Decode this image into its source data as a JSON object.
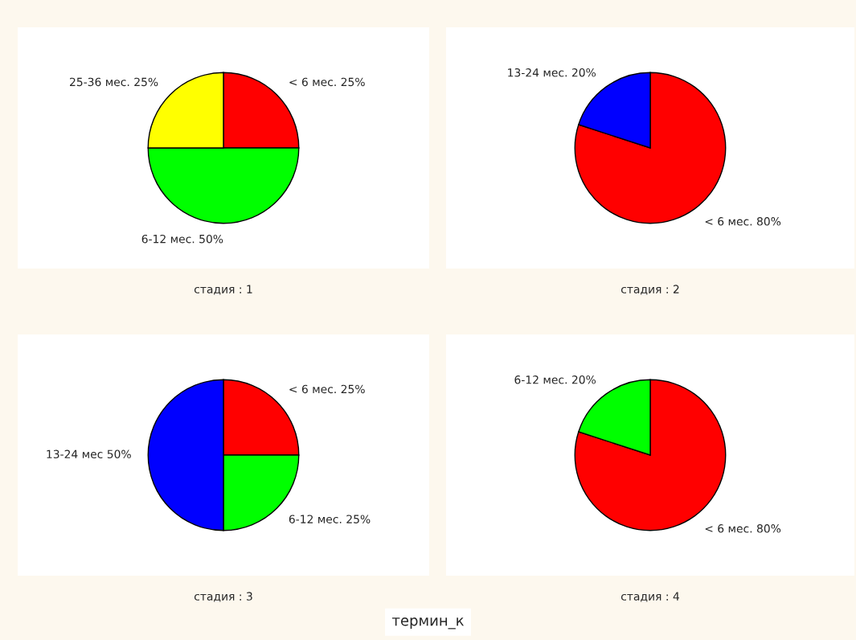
{
  "chart_data": [
    {
      "type": "pie",
      "title": "стадия : 1",
      "categories": [
        "< 6 мес.",
        "6-12 мес.",
        "25-36 мес."
      ],
      "values": [
        25,
        50,
        25
      ],
      "value_labels": [
        "25%",
        "50%",
        "25%"
      ],
      "colors": [
        "#ff0000",
        "#00ff00",
        "#ffff00"
      ]
    },
    {
      "type": "pie",
      "title": "стадия : 2",
      "categories": [
        "< 6 мес.",
        "13-24 мес."
      ],
      "values": [
        80,
        20
      ],
      "value_labels": [
        "80%",
        "20%"
      ],
      "colors": [
        "#ff0000",
        "#0000ff"
      ]
    },
    {
      "type": "pie",
      "title": "стадия : 3",
      "categories": [
        "< 6 мес.",
        "6-12 мес.",
        "13-24 мес"
      ],
      "values": [
        25,
        25,
        50
      ],
      "value_labels": [
        "25%",
        "25%",
        "50%"
      ],
      "colors": [
        "#ff0000",
        "#00ff00",
        "#0000ff"
      ],
      "annotations": [
        "термин_к"
      ]
    },
    {
      "type": "pie",
      "title": "стадия : 4",
      "categories": [
        "< 6 мес.",
        "6-12 мес."
      ],
      "values": [
        80,
        20
      ],
      "value_labels": [
        "80%",
        "20%"
      ],
      "colors": [
        "#ff0000",
        "#00ff00"
      ]
    }
  ]
}
